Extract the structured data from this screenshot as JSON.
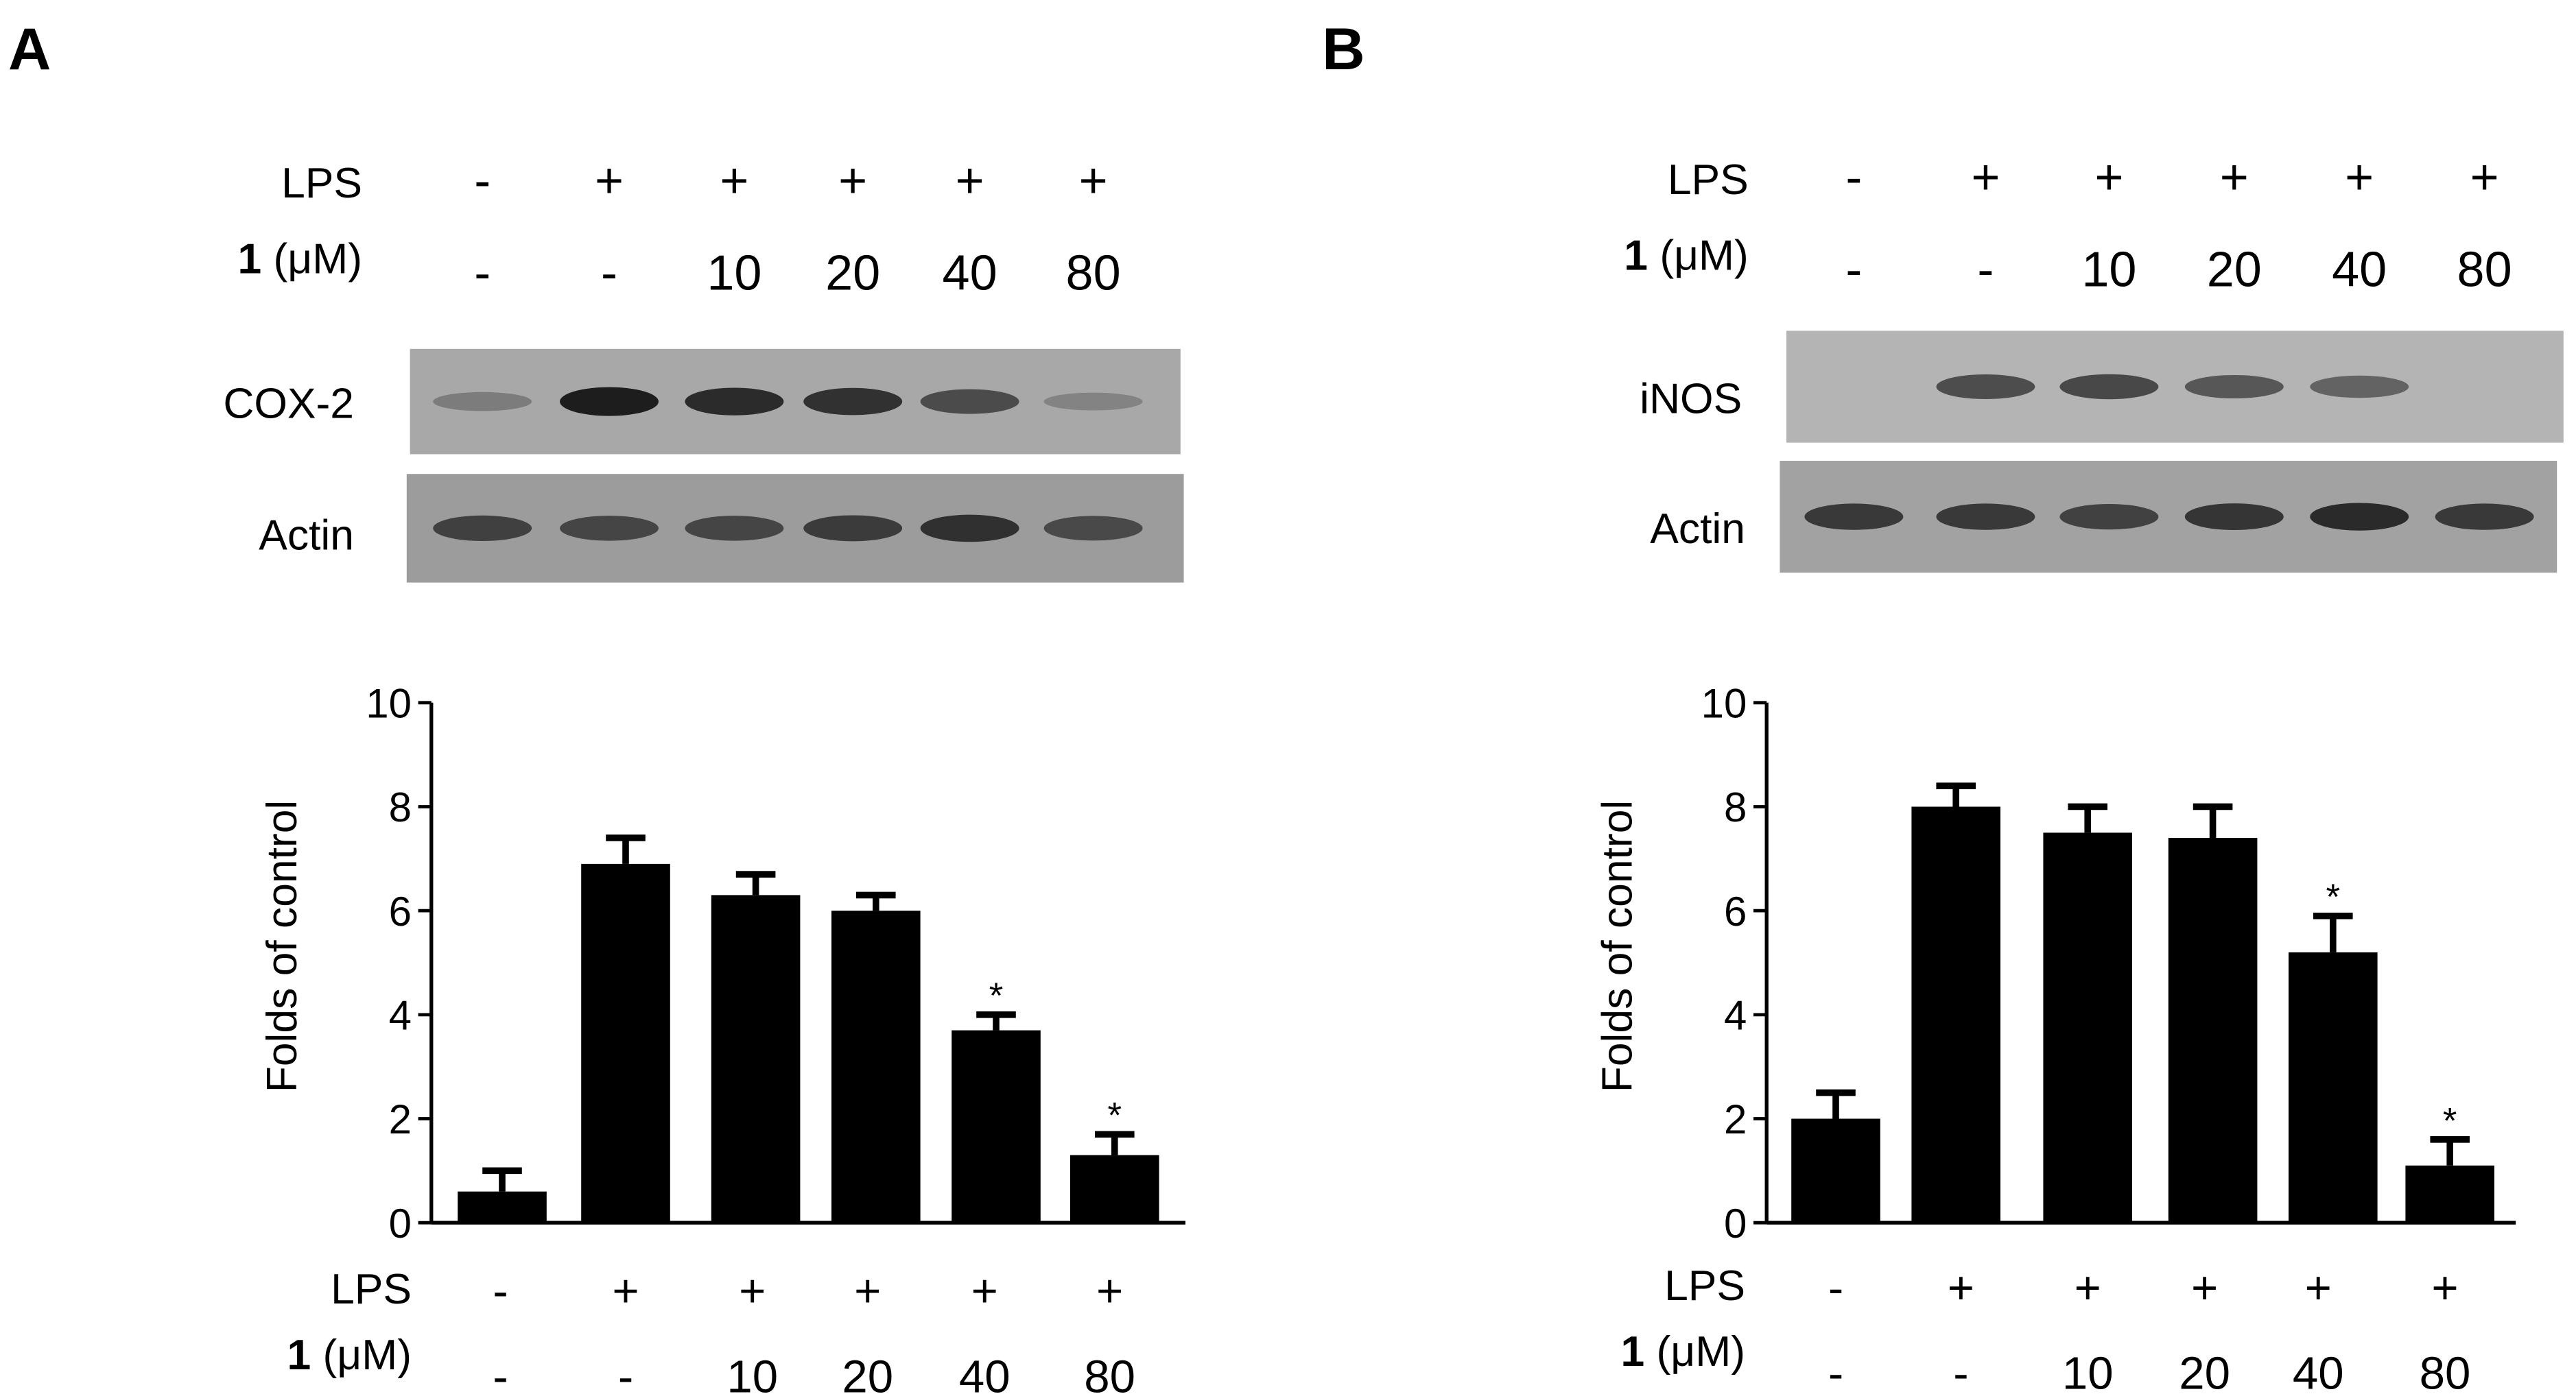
{
  "panels": [
    {
      "letter": "A",
      "blot": {
        "rows": [
          {
            "label": "LPS",
            "values": [
              "-",
              "+",
              "+",
              "+",
              "+",
              "+"
            ]
          },
          {
            "label_bold": "1",
            "label_rest": " (μM)",
            "values": [
              "-",
              "-",
              "10",
              "20",
              "40",
              "80"
            ]
          }
        ],
        "bands": [
          {
            "label": "COX-2",
            "intensities": [
              0.35,
              0.95,
              0.88,
              0.85,
              0.7,
              0.28
            ]
          },
          {
            "label": "Actin",
            "intensities": [
              0.75,
              0.72,
              0.72,
              0.78,
              0.85,
              0.7
            ]
          }
        ]
      },
      "axis_rows": [
        {
          "label": "LPS",
          "values": [
            "-",
            "+",
            "+",
            "+",
            "+",
            "+"
          ]
        },
        {
          "label_bold": "1",
          "label_rest": " (μM)",
          "values": [
            "-",
            "-",
            "10",
            "20",
            "40",
            "80"
          ]
        }
      ]
    },
    {
      "letter": "B",
      "blot": {
        "rows": [
          {
            "label": "LPS",
            "values": [
              "-",
              "+",
              "+",
              "+",
              "+",
              "+"
            ]
          },
          {
            "label_bold": "1",
            "label_rest": " (μM)",
            "values": [
              "-",
              "-",
              "10",
              "20",
              "40",
              "80"
            ]
          }
        ],
        "bands": [
          {
            "label": "iNOS",
            "intensities": [
              0.0,
              0.7,
              0.72,
              0.62,
              0.55,
              0.0
            ]
          },
          {
            "label": "Actin",
            "intensities": [
              0.8,
              0.8,
              0.75,
              0.82,
              0.88,
              0.8
            ]
          }
        ]
      },
      "axis_rows": [
        {
          "label": "LPS",
          "values": [
            "-",
            "+",
            "+",
            "+",
            "+",
            "+"
          ]
        },
        {
          "label_bold": "1",
          "label_rest": " (μM)",
          "values": [
            "-",
            "-",
            "10",
            "20",
            "40",
            "80"
          ]
        }
      ]
    }
  ],
  "chart_data": [
    {
      "type": "bar",
      "ylabel": "Folds of control",
      "ylim": [
        0,
        10
      ],
      "yticks": [
        0,
        2,
        4,
        6,
        8,
        10
      ],
      "values": [
        0.6,
        6.9,
        6.3,
        6.0,
        3.7,
        1.3
      ],
      "errors": [
        0.4,
        0.5,
        0.4,
        0.3,
        0.3,
        0.4
      ],
      "significance": [
        "",
        "",
        "",
        "",
        "*",
        "*"
      ],
      "color": "#000000"
    },
    {
      "type": "bar",
      "ylabel": "Folds of control",
      "ylim": [
        0,
        10
      ],
      "yticks": [
        0,
        2,
        4,
        6,
        8,
        10
      ],
      "values": [
        2.0,
        8.0,
        7.5,
        7.4,
        5.2,
        1.1
      ],
      "errors": [
        0.5,
        0.4,
        0.5,
        0.6,
        0.7,
        0.5
      ],
      "significance": [
        "",
        "",
        "",
        "",
        "*",
        "*"
      ],
      "color": "#000000"
    }
  ]
}
